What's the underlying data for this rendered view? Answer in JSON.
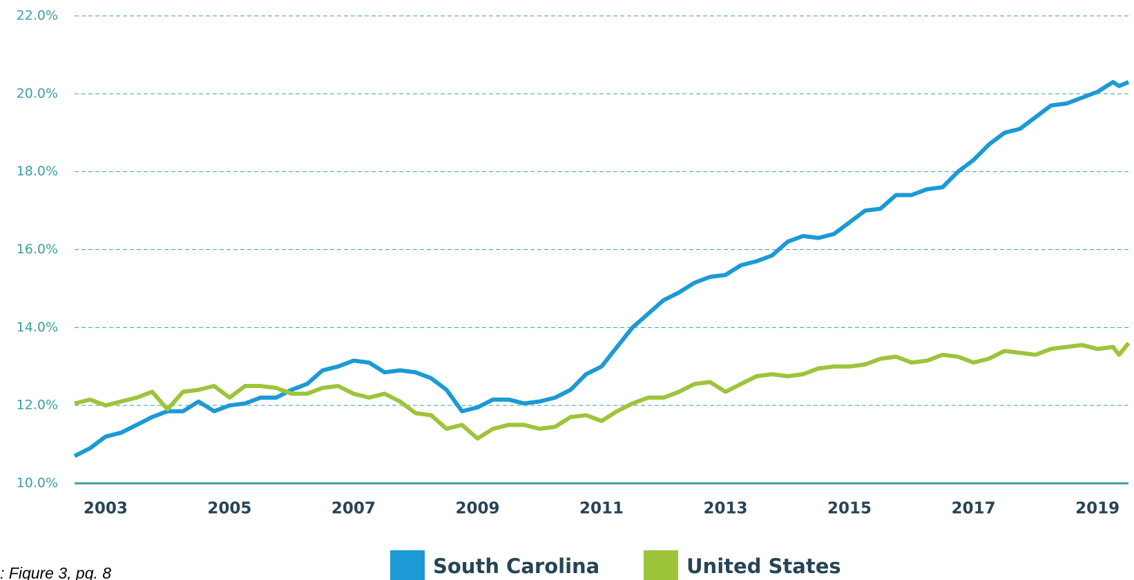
{
  "chart_data": {
    "type": "line",
    "x": [
      2002.5,
      2002.75,
      2003,
      2003.25,
      2003.5,
      2003.75,
      2004,
      2004.25,
      2004.5,
      2004.75,
      2005,
      2005.25,
      2005.5,
      2005.75,
      2006,
      2006.25,
      2006.5,
      2006.75,
      2007,
      2007.25,
      2007.5,
      2007.75,
      2008,
      2008.25,
      2008.5,
      2008.75,
      2009,
      2009.25,
      2009.5,
      2009.75,
      2010,
      2010.25,
      2010.5,
      2010.75,
      2011,
      2011.25,
      2011.5,
      2011.75,
      2012,
      2012.25,
      2012.5,
      2012.75,
      2013,
      2013.25,
      2013.5,
      2013.75,
      2014,
      2014.25,
      2014.5,
      2014.75,
      2015,
      2015.25,
      2015.5,
      2015.75,
      2016,
      2016.25,
      2016.5,
      2016.75,
      2017,
      2017.25,
      2017.5,
      2017.75,
      2018,
      2018.25,
      2018.5,
      2018.75,
      2019,
      2019.25,
      2019.35,
      2019.5
    ],
    "series": [
      {
        "name": "South Carolina",
        "color": "#1b9ad5",
        "values": [
          10.7,
          10.9,
          11.2,
          11.3,
          11.5,
          11.7,
          11.85,
          11.85,
          12.1,
          11.85,
          12.0,
          12.05,
          12.2,
          12.2,
          12.4,
          12.55,
          12.9,
          13.0,
          13.15,
          13.1,
          12.85,
          12.9,
          12.85,
          12.7,
          12.4,
          11.85,
          11.95,
          12.15,
          12.15,
          12.05,
          12.1,
          12.2,
          12.4,
          12.8,
          13.0,
          13.5,
          14.0,
          14.35,
          14.7,
          14.9,
          15.15,
          15.3,
          15.35,
          15.6,
          15.7,
          15.85,
          16.2,
          16.35,
          16.3,
          16.4,
          16.7,
          17.0,
          17.05,
          17.4,
          17.4,
          17.55,
          17.6,
          18.0,
          18.3,
          18.7,
          19.0,
          19.1,
          19.4,
          19.7,
          19.75,
          19.9,
          20.05,
          20.3,
          20.2,
          20.3
        ]
      },
      {
        "name": "United States",
        "color": "#9dc43b",
        "values": [
          12.05,
          12.15,
          12.0,
          12.1,
          12.2,
          12.35,
          11.9,
          12.35,
          12.4,
          12.5,
          12.2,
          12.5,
          12.5,
          12.45,
          12.3,
          12.3,
          12.45,
          12.5,
          12.3,
          12.2,
          12.3,
          12.1,
          11.8,
          11.75,
          11.4,
          11.5,
          11.15,
          11.4,
          11.5,
          11.5,
          11.4,
          11.45,
          11.7,
          11.75,
          11.6,
          11.85,
          12.05,
          12.2,
          12.2,
          12.35,
          12.55,
          12.6,
          12.35,
          12.55,
          12.75,
          12.8,
          12.75,
          12.8,
          12.95,
          13.0,
          13.0,
          13.05,
          13.2,
          13.25,
          13.1,
          13.15,
          13.3,
          13.25,
          13.1,
          13.2,
          13.4,
          13.35,
          13.3,
          13.45,
          13.5,
          13.55,
          13.45,
          13.5,
          13.3,
          13.6
        ]
      }
    ],
    "xlim": [
      2002.5,
      2019.5
    ],
    "xticks": [
      2003,
      2005,
      2007,
      2009,
      2011,
      2013,
      2015,
      2017,
      2019
    ],
    "ylim": [
      10,
      22
    ],
    "yticks": [
      {
        "value": 10,
        "label": "10.0%"
      },
      {
        "value": 12,
        "label": "12.0%"
      },
      {
        "value": 14,
        "label": "14.0%"
      },
      {
        "value": 16,
        "label": "16.0%"
      },
      {
        "value": 18,
        "label": "18.0%"
      },
      {
        "value": 20,
        "label": "20.0%"
      },
      {
        "value": 22,
        "label": "22.0%"
      }
    ],
    "grid": true,
    "note": ": Figure 3, pg. 8"
  }
}
